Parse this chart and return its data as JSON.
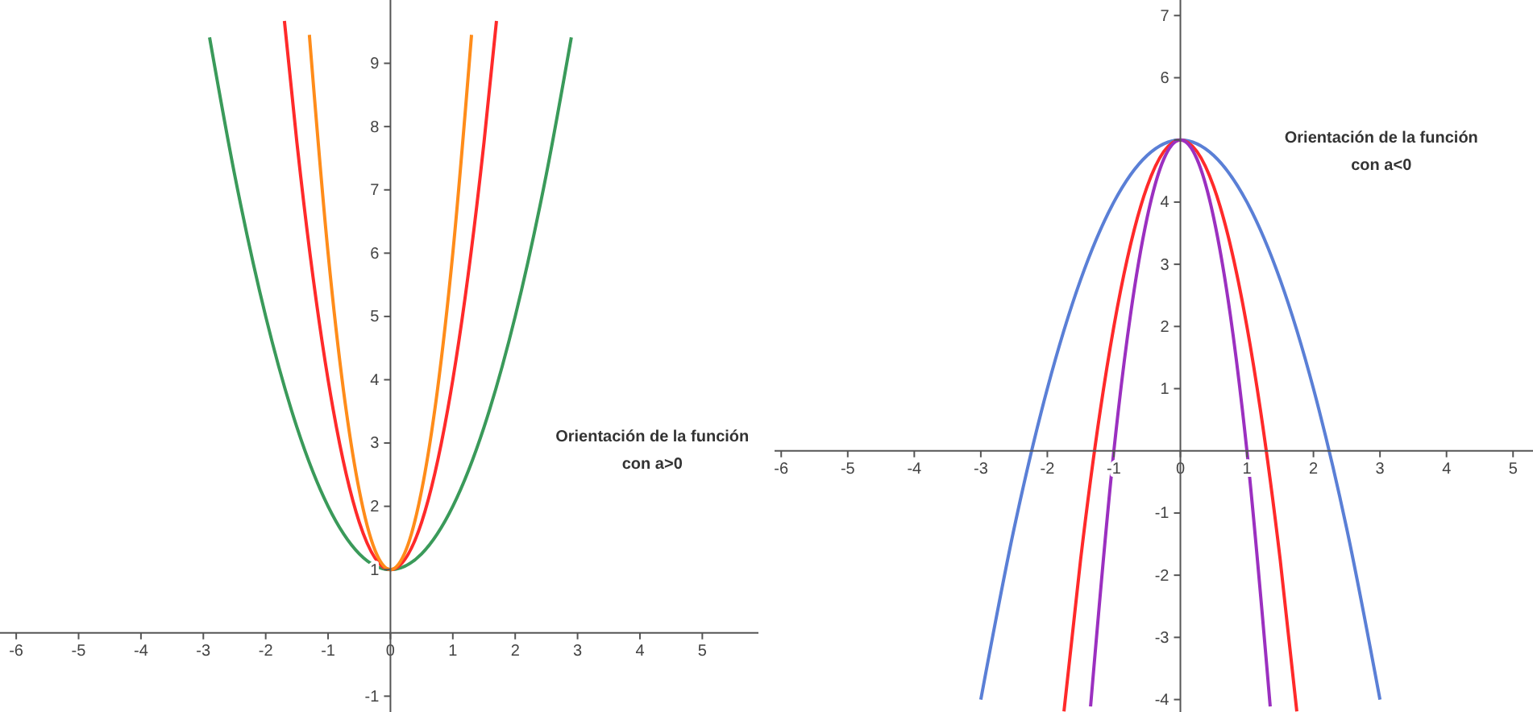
{
  "chart_data": [
    {
      "type": "line",
      "xlim": [
        -6.26,
        5.9
      ],
      "ylim": [
        -1.25,
        10
      ],
      "xticks": [
        -6,
        -5,
        -4,
        -3,
        -2,
        -1,
        0,
        1,
        2,
        3,
        4,
        5
      ],
      "yticks": [
        -1,
        1,
        2,
        3,
        4,
        5,
        6,
        7,
        8,
        9
      ],
      "grid": false,
      "marker": "none",
      "line_style": "solid",
      "annotations": [
        "Orientación de la función con a>0"
      ],
      "series": [
        {
          "color": "#3a9a5a",
          "x": [
            -2.9,
            -2.5,
            -2,
            -1.5,
            -1,
            -0.5,
            0,
            0.5,
            1,
            1.5,
            2,
            2.5,
            2.9
          ],
          "values": [
            9.41,
            7.25,
            5,
            3.25,
            2,
            1.25,
            1,
            1.25,
            2,
            3.25,
            5,
            7.25,
            9.41
          ]
        },
        {
          "color": "#ff2a2a",
          "x": [
            -1.7,
            -1.5,
            -1,
            -0.5,
            0,
            0.5,
            1,
            1.5,
            1.7
          ],
          "values": [
            9.67,
            7.75,
            4,
            1.75,
            1,
            1.75,
            4,
            7.75,
            9.67
          ]
        },
        {
          "color": "#ff8c1a",
          "x": [
            -1.3,
            -1,
            -0.75,
            -0.5,
            -0.25,
            0,
            0.25,
            0.5,
            0.75,
            1,
            1.3
          ],
          "values": [
            9.45,
            6,
            3.81,
            2.25,
            1.31,
            1,
            1.31,
            2.25,
            3.81,
            6,
            9.45
          ]
        }
      ]
    },
    {
      "type": "line",
      "xlim": [
        -6.1,
        5.3
      ],
      "ylim": [
        -4.2,
        7.25
      ],
      "xticks": [
        -6,
        -5,
        -4,
        -3,
        -2,
        -1,
        0,
        1,
        2,
        3,
        4,
        5
      ],
      "yticks": [
        -4,
        -3,
        -2,
        -1,
        1,
        2,
        3,
        4,
        {
          "value": 5,
          "label": null
        },
        6,
        7
      ],
      "grid": false,
      "marker": "none",
      "line_style": "solid",
      "annotations": [
        "Orientación de la función con a<0"
      ],
      "series": [
        {
          "color": "#5a7fd6",
          "x": [
            -3,
            -2.5,
            -2,
            -1.5,
            -1,
            -0.5,
            0,
            0.5,
            1,
            1.5,
            2,
            2.5,
            3
          ],
          "values": [
            -4,
            -1.25,
            1,
            2.75,
            4,
            4.75,
            5,
            4.75,
            4,
            2.75,
            1,
            -1.25,
            -4
          ]
        },
        {
          "color": "#ff2a2a",
          "x": [
            -1.75,
            -1.5,
            -1,
            -0.5,
            0,
            0.5,
            1,
            1.5,
            1.75
          ],
          "values": [
            -4.19,
            -1.75,
            2,
            4.25,
            5,
            4.25,
            2,
            -1.75,
            -4.19
          ]
        },
        {
          "color": "#9b30c0",
          "x": [
            -1.35,
            -1,
            -0.75,
            -0.5,
            -0.25,
            0,
            0.25,
            0.5,
            0.75,
            1,
            1.35
          ],
          "values": [
            -4.11,
            0,
            2.19,
            3.75,
            4.69,
            5,
            4.69,
            3.75,
            2.19,
            0,
            -4.11
          ]
        }
      ]
    }
  ]
}
